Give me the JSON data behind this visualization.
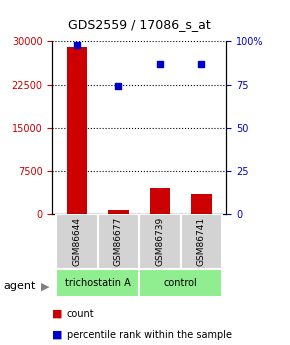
{
  "title": "GDS2559 / 17086_s_at",
  "samples": [
    "GSM86644",
    "GSM86677",
    "GSM86739",
    "GSM86741"
  ],
  "counts": [
    29000,
    700,
    4500,
    3500
  ],
  "percentiles": [
    98,
    74,
    87,
    87
  ],
  "groups": [
    "trichostatin A",
    "trichostatin A",
    "control",
    "control"
  ],
  "group_colors": {
    "trichostatin A": "#90EE90",
    "control": "#90EE90"
  },
  "bar_color": "#cc0000",
  "dot_color": "#0000cc",
  "ylim_left": [
    0,
    30000
  ],
  "ylim_right": [
    0,
    100
  ],
  "yticks_left": [
    0,
    7500,
    15000,
    22500,
    30000
  ],
  "ytick_labels_left": [
    "0",
    "7500",
    "15000",
    "22500",
    "30000"
  ],
  "yticks_right": [
    0,
    25,
    50,
    75,
    100
  ],
  "ytick_labels_right": [
    "0",
    "25",
    "50",
    "75",
    "100%"
  ],
  "bg_color": "#ffffff",
  "sample_box_color": "#d3d3d3",
  "legend_count_label": "count",
  "legend_pct_label": "percentile rank within the sample",
  "agent_label": "agent"
}
